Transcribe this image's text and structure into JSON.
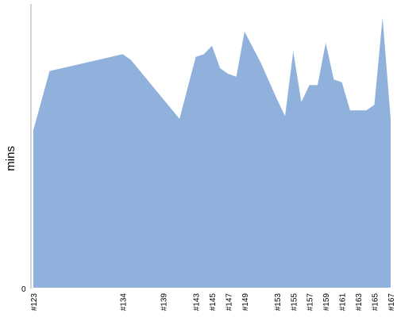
{
  "chart_data": {
    "type": "area",
    "ylabel": "mins",
    "xlabel": "",
    "title": "",
    "y_ticks": [
      "0"
    ],
    "categories": [
      "#123",
      "#134",
      "#139",
      "#143",
      "#145",
      "#147",
      "#149",
      "#153",
      "#155",
      "#157",
      "#159",
      "#161",
      "#163",
      "#165",
      "#167"
    ],
    "x": [
      123,
      125,
      134,
      135,
      139,
      141,
      143,
      144,
      145,
      146,
      147,
      148,
      149,
      151,
      153,
      154,
      155,
      156,
      157,
      158,
      159,
      160,
      161,
      162,
      163,
      164,
      165,
      166,
      167
    ],
    "values": [
      56,
      77,
      83,
      81,
      67,
      60,
      82,
      83,
      86,
      78,
      76,
      75,
      91,
      80,
      67,
      61,
      84,
      66,
      72,
      72,
      87,
      74,
      73,
      63,
      63,
      63,
      65,
      96,
      60
    ],
    "ylim": [
      0,
      100
    ],
    "grid": false,
    "legend": "none",
    "colors": {
      "fill": "#8fb1db",
      "axis": "#aaaaaa"
    }
  }
}
